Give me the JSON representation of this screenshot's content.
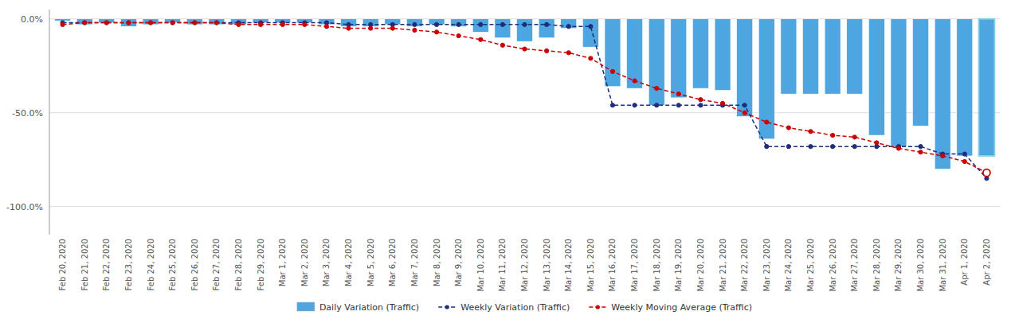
{
  "chart_data": {
    "type": "bar",
    "categories": [
      "Feb 20, 2020",
      "Feb 21, 2020",
      "Feb 22, 2020",
      "Feb 23, 2020",
      "Feb 24, 2020",
      "Feb 25, 2020",
      "Feb 26, 2020",
      "Feb 27, 2020",
      "Feb 28, 2020",
      "Feb 29, 2020",
      "Mar 1, 2020",
      "Mar 2, 2020",
      "Mar 3, 2020",
      "Mar 4, 2020",
      "Mar 5, 2020",
      "Mar 6, 2020",
      "Mar 7, 2020",
      "Mar 8, 2020",
      "Mar 9, 2020",
      "Mar 10, 2020",
      "Mar 11, 2020",
      "Mar 12, 2020",
      "Mar 13, 2020",
      "Mar 14, 2020",
      "Mar 15, 2020",
      "Mar 16, 2020",
      "Mar 17, 2020",
      "Mar 18, 2020",
      "Mar 19, 2020",
      "Mar 20, 2020",
      "Mar 21, 2020",
      "Mar 22, 2020",
      "Mar 23, 2020",
      "Mar 24, 2020",
      "Mar 25, 2020",
      "Mar 26, 2020",
      "Mar 27, 2020",
      "Mar 28, 2020",
      "Mar 29, 2020",
      "Mar 30, 2020",
      "Mar 31, 2020",
      "Apr 1, 2020",
      "Apr 2, 2020"
    ],
    "series": [
      {
        "name": "Daily Variation (Traffic)",
        "type": "bar",
        "color": "#4DA6E0",
        "values": [
          -1,
          -3,
          -2,
          -4,
          -3,
          -2,
          -3,
          -3,
          -3,
          -2,
          -2,
          -2,
          -3,
          -4,
          -4,
          -3,
          -4,
          -3,
          -4,
          -7,
          -10,
          -12,
          -10,
          -5,
          -15,
          -36,
          -37,
          -46,
          -42,
          -37,
          -38,
          -52,
          -64,
          -40,
          -40,
          -40,
          -40,
          -62,
          -68,
          -57,
          -80,
          -73,
          -73
        ]
      },
      {
        "name": "Weekly Variation (Traffic)",
        "type": "line",
        "color": "#1F2D7B",
        "line_style": "dashed",
        "marker": "circle",
        "values": [
          -2,
          -2,
          -2,
          -2,
          -2,
          -2,
          -2,
          -2,
          -2,
          -2,
          -2,
          -2,
          -2,
          -3,
          -3,
          -3,
          -3,
          -3,
          -3,
          -3,
          -3,
          -3,
          -3,
          -4,
          -4,
          -46,
          -46,
          -46,
          -46,
          -46,
          -46,
          -46,
          -68,
          -68,
          -68,
          -68,
          -68,
          -68,
          -68,
          -68,
          -72,
          -72,
          -85
        ]
      },
      {
        "name": "Weekly Moving Average (Traffic)",
        "type": "line",
        "color": "#CC0000",
        "line_style": "dashed",
        "marker": "circle",
        "values": [
          -3,
          -2,
          -2,
          -2,
          -2,
          -2,
          -2,
          -2,
          -3,
          -3,
          -3,
          -3,
          -4,
          -5,
          -5,
          -5,
          -6,
          -7,
          -9,
          -11,
          -14,
          -16,
          -17,
          -18,
          -21,
          -28,
          -33,
          -37,
          -40,
          -43,
          -45,
          -50,
          -55,
          -58,
          -60,
          -62,
          -63,
          -66,
          -69,
          -71,
          -73,
          -76,
          -82
        ]
      }
    ],
    "ylim": [
      -115,
      5
    ],
    "yticks": [
      {
        "value": 0,
        "label": "0.0%"
      },
      {
        "value": -50,
        "label": "-50.0%"
      },
      {
        "value": -100,
        "label": "-100.0%"
      }
    ],
    "grid": true,
    "legend": "bottom"
  }
}
